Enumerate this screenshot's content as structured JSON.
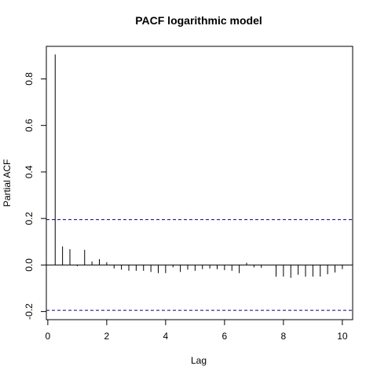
{
  "chart_data": {
    "type": "bar",
    "title": "PACF logarithmic model",
    "xlabel": "Lag",
    "ylabel": "Partial ACF",
    "xlim": [
      -0.05,
      10.35
    ],
    "ylim": [
      -0.235,
      0.94
    ],
    "x_ticks": [
      0,
      2,
      4,
      6,
      8,
      10
    ],
    "x_tick_labels": [
      "0",
      "2",
      "4",
      "6",
      "8",
      "10"
    ],
    "y_ticks": [
      -0.2,
      0.0,
      0.2,
      0.4,
      0.6,
      0.8
    ],
    "y_tick_labels": [
      "-0.2",
      "0.0",
      "0.2",
      "0.4",
      "0.6",
      "0.8"
    ],
    "confidence_bound": 0.195,
    "confidence_color": "#00008b",
    "grid": false,
    "legend": "none",
    "x": [
      0.25,
      0.5,
      0.75,
      1.0,
      1.25,
      1.5,
      1.75,
      2.0,
      2.25,
      2.5,
      2.75,
      3.0,
      3.25,
      3.5,
      3.75,
      4.0,
      4.25,
      4.5,
      4.75,
      5.0,
      5.25,
      5.5,
      5.75,
      6.0,
      6.25,
      6.5,
      6.75,
      7.0,
      7.25,
      7.5,
      7.75,
      8.0,
      8.25,
      8.5,
      8.75,
      9.0,
      9.25,
      9.5,
      9.75,
      10.0
    ],
    "values": [
      0.905,
      0.08,
      0.068,
      -0.005,
      0.065,
      0.015,
      0.025,
      0.012,
      -0.015,
      -0.02,
      -0.025,
      -0.025,
      -0.025,
      -0.03,
      -0.035,
      -0.035,
      -0.01,
      -0.03,
      -0.02,
      -0.025,
      -0.018,
      -0.015,
      -0.018,
      -0.022,
      -0.025,
      -0.035,
      0.01,
      -0.01,
      -0.012,
      0.0,
      -0.05,
      -0.05,
      -0.055,
      -0.042,
      -0.05,
      -0.05,
      -0.05,
      -0.04,
      -0.032,
      -0.018
    ]
  }
}
